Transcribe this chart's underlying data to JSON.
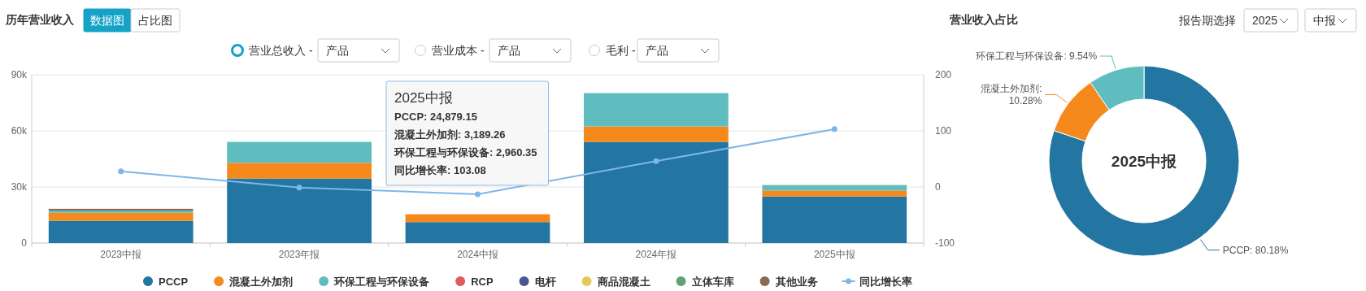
{
  "chart_data": [
    {
      "type": "bar",
      "title": "历年营业收入",
      "stacked": true,
      "categories": [
        "2023中报",
        "2023年报",
        "2024中报",
        "2024年报",
        "2025中报"
      ],
      "series": [
        {
          "name": "PCCP",
          "color": "#2276a1",
          "values": [
            11900,
            34500,
            11200,
            54100,
            24879.15
          ]
        },
        {
          "name": "混凝土外加剂",
          "color": "#f5891c",
          "values": [
            4300,
            8400,
            4200,
            8300,
            3189.26
          ]
        },
        {
          "name": "环保工程与环保设备",
          "color": "#5fbdbf",
          "values": [
            1200,
            11200,
            null,
            17800,
            2960.35
          ]
        },
        {
          "name": "RCP",
          "color": "#e05a5a",
          "values": [
            null,
            null,
            null,
            null,
            null
          ]
        },
        {
          "name": "电杆",
          "color": "#4a5593",
          "values": [
            null,
            null,
            null,
            null,
            null
          ]
        },
        {
          "name": "商品混凝土",
          "color": "#e8c659",
          "values": [
            null,
            null,
            null,
            null,
            null
          ]
        },
        {
          "name": "立体车库",
          "color": "#63a274",
          "values": [
            null,
            null,
            null,
            null,
            null
          ]
        },
        {
          "name": "其他业务",
          "color": "#8c6a52",
          "values": [
            900,
            null,
            null,
            null,
            null
          ]
        },
        {
          "name": "同比增长率",
          "type": "line",
          "axis": "y2",
          "color": "#7eb6ea",
          "marker": "circle",
          "values": [
            28,
            -1,
            -13,
            46,
            103.08
          ]
        }
      ],
      "ylim": [
        0,
        90000
      ],
      "yticks": [
        0,
        {
          "value": 30000,
          "label": "30k"
        },
        {
          "value": 60000,
          "label": "60k"
        },
        {
          "value": 90000,
          "label": "90k"
        }
      ],
      "y2lim": [
        -100,
        200
      ],
      "y2ticks": [
        -100,
        0,
        100,
        200
      ],
      "grid": "y",
      "legend": "bottom",
      "annotations": [
        "2025中报",
        "PCCP: 24,879.15",
        "混凝土外加剂: 3,189.26",
        "环保工程与环保设备: 2,960.35",
        "同比增长率: 103.08"
      ]
    },
    {
      "type": "donut",
      "title": "营业收入占比",
      "categories": [
        "PCCP",
        "混凝土外加剂",
        "环保工程与环保设备"
      ],
      "values": [
        80.18,
        10.28,
        9.54
      ],
      "colors": [
        "#2276a1",
        "#f5891c",
        "#5fbdbf"
      ],
      "value_labels": [
        ": 80.18%",
        ": 10.28%",
        ": 9.54%"
      ],
      "annotations": [
        "2025中报"
      ]
    },
    {
      "type": "other",
      "annotations": [
        "数据图",
        "占比图",
        "营业总收入 -",
        "产品",
        "营业成本 -",
        "产品",
        "毛利 -",
        "产品",
        "报告期选择",
        "2025",
        "中报"
      ]
    }
  ]
}
